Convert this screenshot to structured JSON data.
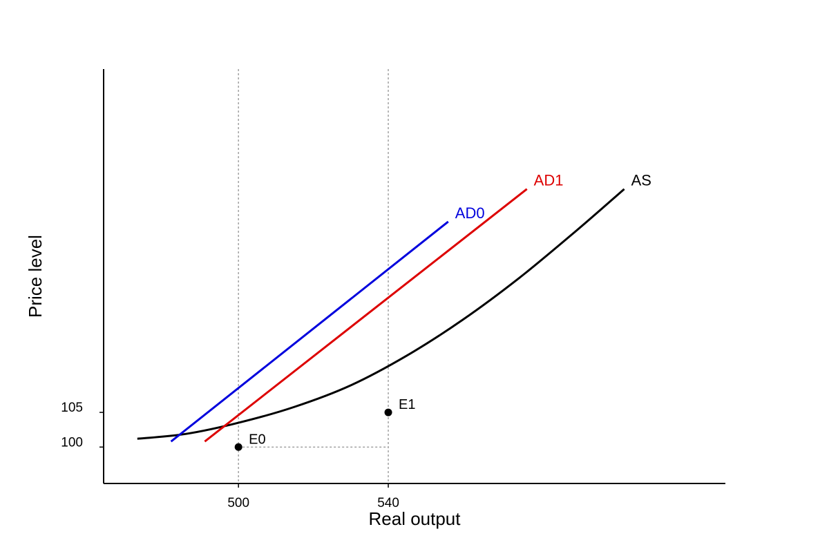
{
  "chart_data": {
    "type": "line",
    "title": "",
    "xlabel": "Real output",
    "ylabel": "Price level",
    "xlim": [
      464.0,
      630.0
    ],
    "ylim": [
      94.75,
      154.5
    ],
    "x_ticks": [
      500,
      540
    ],
    "y_ticks": [
      100,
      105
    ],
    "grid": false,
    "series": [
      {
        "name": "AS",
        "color": "#000000",
        "points": [
          [
            473.0,
            101.2
          ],
          [
            486.0,
            101.9
          ],
          [
            500.0,
            103.5
          ],
          [
            515.0,
            105.8
          ],
          [
            530.0,
            108.9
          ],
          [
            545.0,
            113.2
          ],
          [
            560.0,
            118.4
          ],
          [
            575.0,
            124.4
          ],
          [
            590.0,
            131.1
          ],
          [
            603.0,
            137.2
          ]
        ]
      },
      {
        "name": "AD0",
        "color": "#0000dd",
        "points": [
          [
            482.0,
            100.8
          ],
          [
            556.0,
            132.5
          ]
        ]
      },
      {
        "name": "AD1",
        "color": "#dd0000",
        "points": [
          [
            491.0,
            100.8
          ],
          [
            577.0,
            137.2
          ]
        ]
      }
    ],
    "points": [
      {
        "label": "E0",
        "x": 500,
        "y": 100
      },
      {
        "label": "E1",
        "x": 540,
        "y": 105
      }
    ],
    "guides": [
      {
        "type": "vertical",
        "x": 500
      },
      {
        "type": "vertical",
        "x": 540
      },
      {
        "type": "horizontal",
        "y": 100,
        "from_x": 500,
        "to_x": 540
      }
    ]
  }
}
